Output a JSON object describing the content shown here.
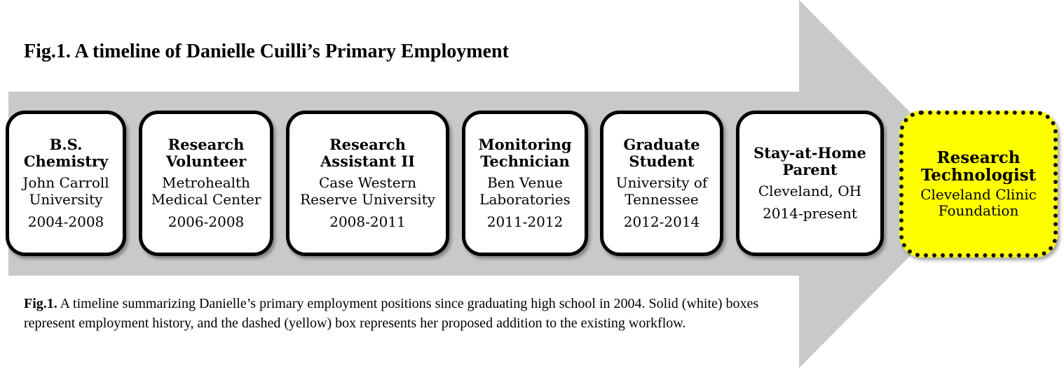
{
  "title": "Fig.1. A timeline of Danielle Cuilli’s Primary Employment",
  "boxes": [
    {
      "role": "B.S.\nChemistry",
      "org": "John Carroll\nUniversity",
      "years": "2004-2008"
    },
    {
      "role": "Research\nVolunteer",
      "org": "Metrohealth\nMedical Center",
      "years": "2006-2008"
    },
    {
      "role": "Research\nAssistant II",
      "org": "Case Western\nReserve University",
      "years": "2008-2011"
    },
    {
      "role": "Monitoring\nTechnician",
      "org": "Ben Venue\nLaboratories",
      "years": "2011-2012"
    },
    {
      "role": "Graduate\nStudent",
      "org": "University of\nTennessee",
      "years": "2012-2014"
    },
    {
      "role": "Stay-at-Home\nParent",
      "org": "Cleveland, OH",
      "years": "2014-present"
    }
  ],
  "proposed": {
    "role": "Research\nTechnologist",
    "org": "Cleveland Clinic\nFoundation"
  },
  "caption": {
    "label": "Fig.1.",
    "text": " A timeline summarizing Danielle’s primary employment positions since graduating high school in 2004.  Solid (white) boxes represent employment history, and the dashed (yellow) box represents her proposed addition to the existing workflow."
  },
  "colors": {
    "arrow": "#c9c9c9",
    "proposed_fill": "#ffff00",
    "box_fill": "#ffffff"
  }
}
